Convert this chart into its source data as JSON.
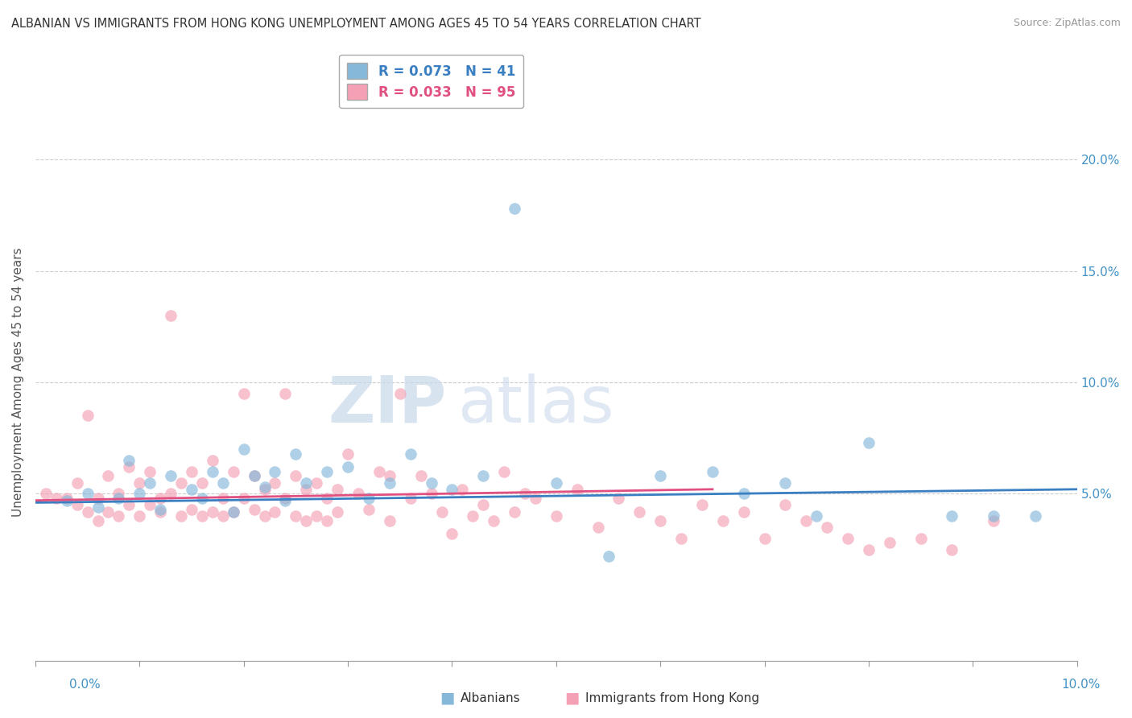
{
  "title": "ALBANIAN VS IMMIGRANTS FROM HONG KONG UNEMPLOYMENT AMONG AGES 45 TO 54 YEARS CORRELATION CHART",
  "source": "Source: ZipAtlas.com",
  "ylabel": "Unemployment Among Ages 45 to 54 years",
  "ytick_values": [
    0.05,
    0.1,
    0.15,
    0.2
  ],
  "xlim": [
    0.0,
    0.1
  ],
  "ylim": [
    -0.025,
    0.225
  ],
  "legend_r1": "R = 0.073",
  "legend_n1": "N = 41",
  "legend_r2": "R = 0.033",
  "legend_n2": "N = 95",
  "color_blue": "#85b8d9",
  "color_pink": "#f4a0b5",
  "color_blue_line": "#3a7fc1",
  "color_pink_line": "#e05080",
  "watermark_ZIP": "ZIP",
  "watermark_atlas": "atlas",
  "blue_scatter_x": [
    0.003,
    0.005,
    0.006,
    0.008,
    0.009,
    0.01,
    0.011,
    0.012,
    0.013,
    0.015,
    0.016,
    0.017,
    0.018,
    0.019,
    0.02,
    0.021,
    0.022,
    0.023,
    0.024,
    0.025,
    0.026,
    0.028,
    0.03,
    0.032,
    0.034,
    0.036,
    0.038,
    0.04,
    0.043,
    0.046,
    0.05,
    0.055,
    0.06,
    0.065,
    0.068,
    0.072,
    0.075,
    0.08,
    0.088,
    0.092,
    0.096
  ],
  "blue_scatter_y": [
    0.047,
    0.05,
    0.044,
    0.048,
    0.065,
    0.05,
    0.055,
    0.043,
    0.058,
    0.052,
    0.048,
    0.06,
    0.055,
    0.042,
    0.07,
    0.058,
    0.053,
    0.06,
    0.047,
    0.068,
    0.055,
    0.06,
    0.062,
    0.048,
    0.055,
    0.068,
    0.055,
    0.052,
    0.058,
    0.178,
    0.055,
    0.022,
    0.058,
    0.06,
    0.05,
    0.055,
    0.04,
    0.073,
    0.04,
    0.04,
    0.04
  ],
  "pink_scatter_x": [
    0.001,
    0.002,
    0.003,
    0.004,
    0.004,
    0.005,
    0.005,
    0.006,
    0.006,
    0.007,
    0.007,
    0.008,
    0.008,
    0.009,
    0.009,
    0.01,
    0.01,
    0.011,
    0.011,
    0.012,
    0.012,
    0.013,
    0.013,
    0.014,
    0.014,
    0.015,
    0.015,
    0.016,
    0.016,
    0.017,
    0.017,
    0.018,
    0.018,
    0.019,
    0.019,
    0.02,
    0.02,
    0.021,
    0.021,
    0.022,
    0.022,
    0.023,
    0.023,
    0.024,
    0.024,
    0.025,
    0.025,
    0.026,
    0.026,
    0.027,
    0.027,
    0.028,
    0.028,
    0.029,
    0.029,
    0.03,
    0.031,
    0.032,
    0.033,
    0.034,
    0.034,
    0.035,
    0.036,
    0.037,
    0.038,
    0.039,
    0.04,
    0.041,
    0.042,
    0.043,
    0.044,
    0.045,
    0.046,
    0.047,
    0.048,
    0.05,
    0.052,
    0.054,
    0.056,
    0.058,
    0.06,
    0.062,
    0.064,
    0.066,
    0.068,
    0.07,
    0.072,
    0.074,
    0.076,
    0.078,
    0.08,
    0.082,
    0.085,
    0.088,
    0.092
  ],
  "pink_scatter_y": [
    0.05,
    0.048,
    0.048,
    0.045,
    0.055,
    0.085,
    0.042,
    0.048,
    0.038,
    0.058,
    0.042,
    0.05,
    0.04,
    0.062,
    0.045,
    0.055,
    0.04,
    0.06,
    0.045,
    0.048,
    0.042,
    0.13,
    0.05,
    0.055,
    0.04,
    0.06,
    0.043,
    0.055,
    0.04,
    0.065,
    0.042,
    0.048,
    0.04,
    0.06,
    0.042,
    0.095,
    0.048,
    0.043,
    0.058,
    0.052,
    0.04,
    0.055,
    0.042,
    0.095,
    0.048,
    0.058,
    0.04,
    0.052,
    0.038,
    0.055,
    0.04,
    0.048,
    0.038,
    0.052,
    0.042,
    0.068,
    0.05,
    0.043,
    0.06,
    0.058,
    0.038,
    0.095,
    0.048,
    0.058,
    0.05,
    0.042,
    0.032,
    0.052,
    0.04,
    0.045,
    0.038,
    0.06,
    0.042,
    0.05,
    0.048,
    0.04,
    0.052,
    0.035,
    0.048,
    0.042,
    0.038,
    0.03,
    0.045,
    0.038,
    0.042,
    0.03,
    0.045,
    0.038,
    0.035,
    0.03,
    0.025,
    0.028,
    0.03,
    0.025,
    0.038
  ],
  "blue_trend_x0": 0.0,
  "blue_trend_x1": 0.1,
  "blue_trend_y0": 0.046,
  "blue_trend_y1": 0.052,
  "pink_trend_x0": 0.0,
  "pink_trend_x1": 0.065,
  "pink_trend_y0": 0.047,
  "pink_trend_y1": 0.052
}
